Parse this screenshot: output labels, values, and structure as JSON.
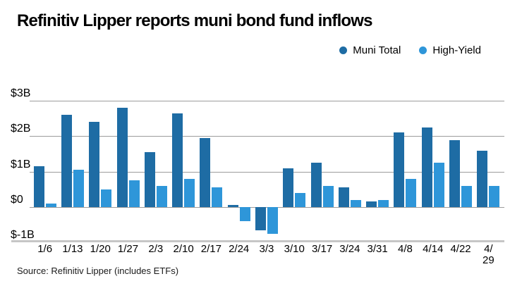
{
  "source": "Source: Refinitiv Lipper (includes ETFs)",
  "chart_data": {
    "type": "bar",
    "title": "Refinitiv Lipper reports muni bond fund inflows",
    "categories": [
      "1/6",
      "1/13",
      "1/20",
      "1/27",
      "2/3",
      "2/10",
      "2/17",
      "2/24",
      "3/3",
      "3/10",
      "3/17",
      "3/24",
      "3/31",
      "4/8",
      "4/14",
      "4/22",
      "4/29"
    ],
    "x_tick_labels": [
      "1/6",
      "1/13",
      "1/20",
      "1/27",
      "2/3",
      "2/10",
      "2/17",
      "2/24",
      "3/3",
      "3/10",
      "3/17",
      "3/24",
      "3/31",
      "4/8",
      "4/14",
      "4/22",
      "4/\n29"
    ],
    "series": [
      {
        "name": "Muni Total",
        "color": "#1e6ca4",
        "values": [
          1.15,
          2.6,
          2.4,
          2.8,
          1.55,
          2.65,
          1.95,
          0.05,
          -0.65,
          1.1,
          1.25,
          0.55,
          0.15,
          2.1,
          2.25,
          1.9,
          1.6
        ]
      },
      {
        "name": "High-Yield",
        "color": "#2e96d9",
        "values": [
          0.1,
          1.05,
          0.5,
          0.75,
          0.6,
          0.8,
          0.55,
          -0.4,
          -0.75,
          0.4,
          0.6,
          0.2,
          0.2,
          0.8,
          1.25,
          0.6,
          0.6
        ]
      }
    ],
    "y_ticks": [
      {
        "label": "$3B",
        "value": 3
      },
      {
        "label": "$2B",
        "value": 2
      },
      {
        "label": "$1B",
        "value": 1
      },
      {
        "label": "$0",
        "value": 0
      },
      {
        "label": "$-1B",
        "value": -1
      }
    ],
    "ylim": [
      -1,
      3
    ],
    "grid": true,
    "legend_position": "top-right",
    "xlabel": "",
    "ylabel": ""
  },
  "colors": {
    "gridline": "#9c9c9c",
    "axis_bottom": "#c6c6c6",
    "background": "#ffffff"
  }
}
